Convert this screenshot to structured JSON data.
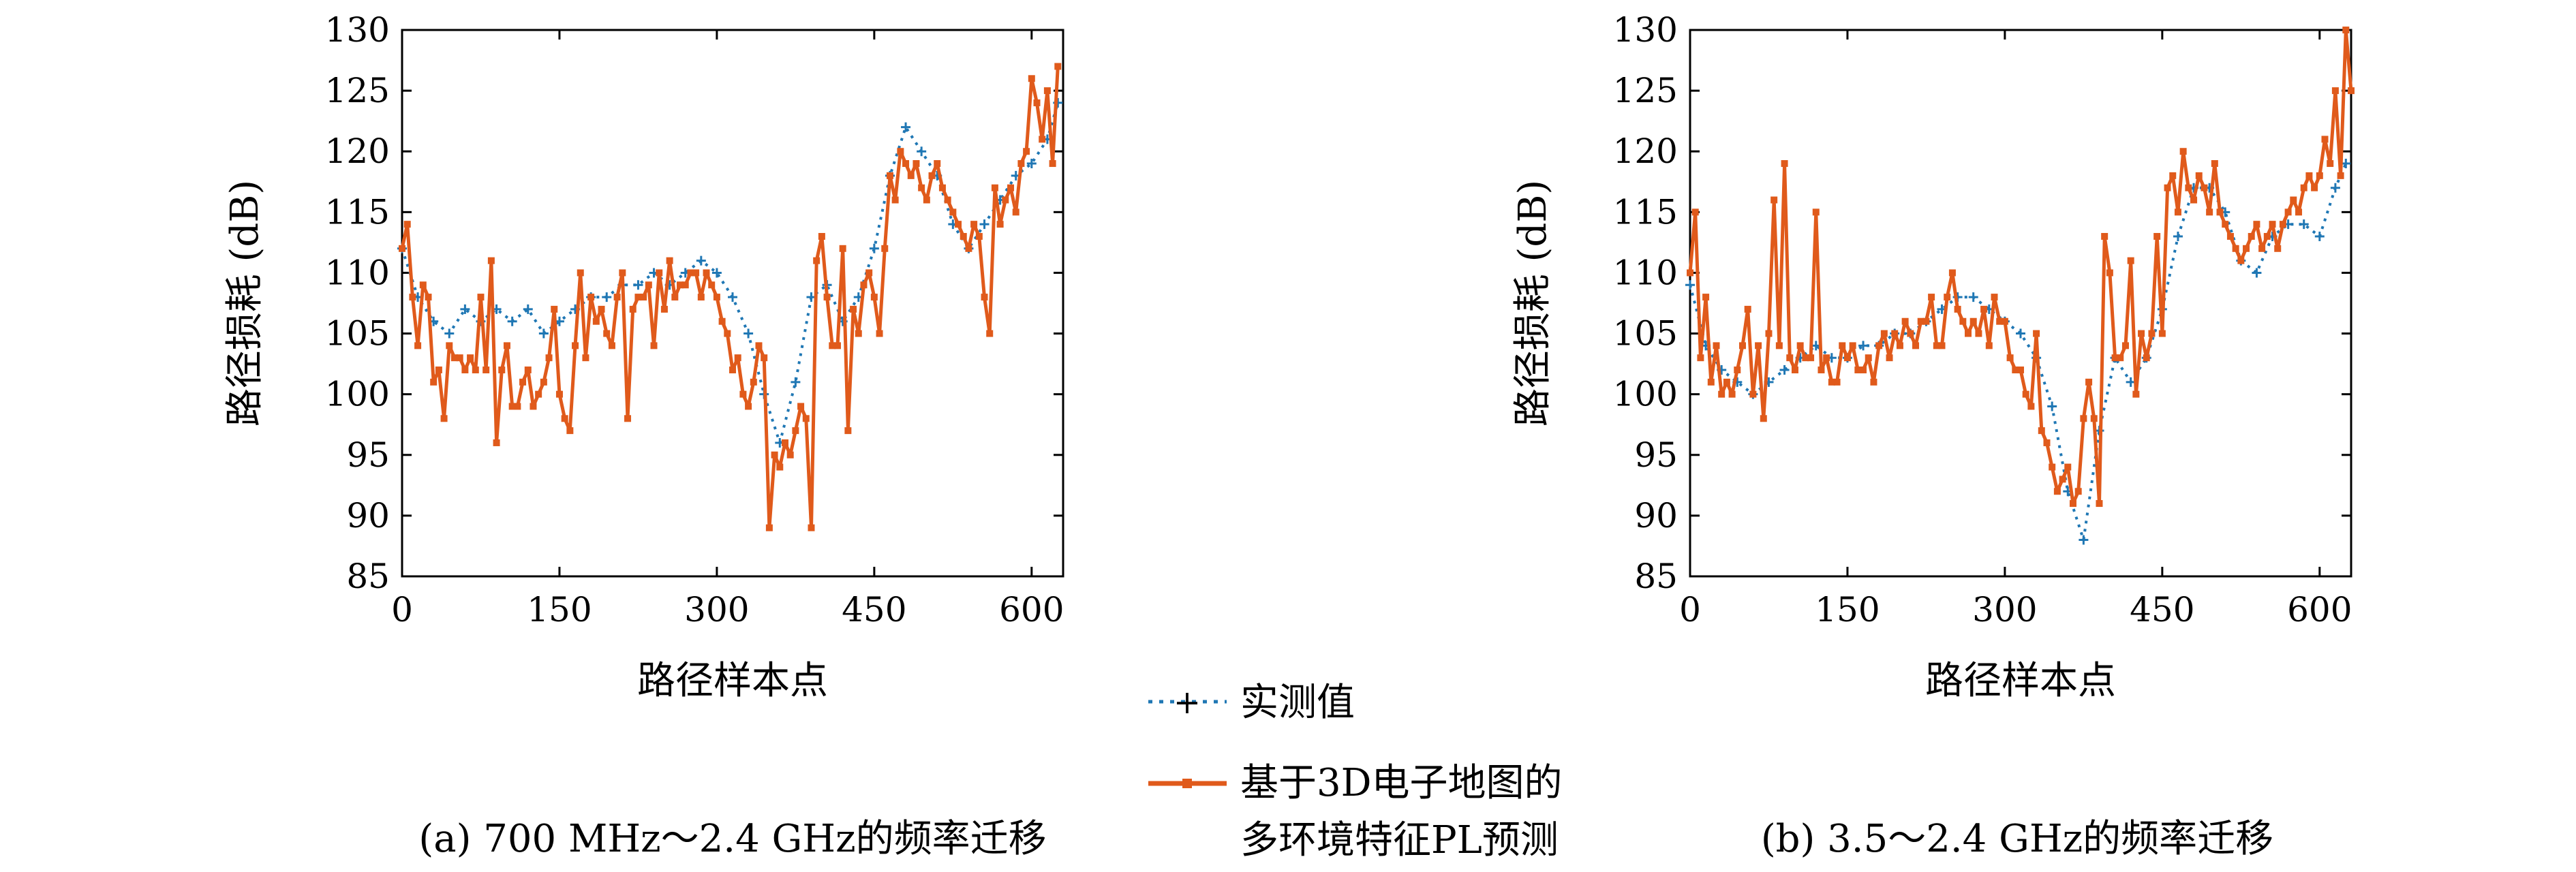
{
  "legend": {
    "measured": "实测值",
    "model_line1": "基于3D电子地图的",
    "model_line2": "多环境特征PL预测"
  },
  "colors": {
    "measured": "#1f77b4",
    "model": "#e05a1b"
  },
  "chart_data": [
    {
      "type": "line",
      "caption": "(a) 700 MHz～2.4 GHz的频率迁移",
      "xlabel": "路径样本点",
      "ylabel": "路径损耗 (dB)",
      "xlim": [
        0,
        630
      ],
      "ylim": [
        85,
        130
      ],
      "xticks": [
        0,
        150,
        300,
        450,
        600
      ],
      "yticks": [
        85,
        90,
        95,
        100,
        105,
        110,
        115,
        120,
        125,
        130
      ],
      "grid": false,
      "series": [
        {
          "name": "实测值",
          "style": "dotted-plus",
          "x": [
            0,
            15,
            30,
            45,
            60,
            75,
            90,
            105,
            120,
            135,
            150,
            165,
            180,
            195,
            210,
            225,
            240,
            255,
            270,
            285,
            300,
            315,
            330,
            345,
            360,
            375,
            390,
            405,
            420,
            435,
            450,
            465,
            480,
            495,
            510,
            525,
            540,
            555,
            570,
            585,
            600,
            615,
            625
          ],
          "y": [
            112,
            108,
            106,
            105,
            107,
            106,
            107,
            106,
            107,
            105,
            106,
            107,
            108,
            108,
            109,
            109,
            110,
            109,
            110,
            111,
            110,
            108,
            105,
            100,
            96,
            101,
            108,
            109,
            106,
            108,
            112,
            118,
            122,
            120,
            118,
            114,
            112,
            114,
            116,
            118,
            119,
            121,
            124
          ]
        },
        {
          "name": "基于3D电子地图的多环境特征PL预测",
          "style": "solid-square",
          "x": [
            0,
            5,
            10,
            15,
            20,
            25,
            30,
            35,
            40,
            45,
            50,
            55,
            60,
            65,
            70,
            75,
            80,
            85,
            90,
            95,
            100,
            105,
            110,
            115,
            120,
            125,
            130,
            135,
            140,
            145,
            150,
            155,
            160,
            165,
            170,
            175,
            180,
            185,
            190,
            195,
            200,
            205,
            210,
            215,
            220,
            225,
            230,
            235,
            240,
            245,
            250,
            255,
            260,
            265,
            270,
            275,
            280,
            285,
            290,
            295,
            300,
            305,
            310,
            315,
            320,
            325,
            330,
            335,
            340,
            345,
            350,
            355,
            360,
            365,
            370,
            375,
            380,
            385,
            390,
            395,
            400,
            405,
            410,
            415,
            420,
            425,
            430,
            435,
            440,
            445,
            450,
            455,
            460,
            465,
            470,
            475,
            480,
            485,
            490,
            495,
            500,
            505,
            510,
            515,
            520,
            525,
            530,
            535,
            540,
            545,
            550,
            555,
            560,
            565,
            570,
            575,
            580,
            585,
            590,
            595,
            600,
            605,
            610,
            615,
            620,
            625
          ],
          "y": [
            112,
            114,
            108,
            104,
            109,
            108,
            101,
            102,
            98,
            104,
            103,
            103,
            102,
            103,
            102,
            108,
            102,
            111,
            96,
            102,
            104,
            99,
            99,
            101,
            102,
            99,
            100,
            101,
            103,
            107,
            100,
            98,
            97,
            104,
            110,
            103,
            108,
            106,
            107,
            105,
            104,
            108,
            110,
            98,
            107,
            108,
            108,
            109,
            104,
            110,
            107,
            111,
            108,
            109,
            109,
            110,
            110,
            108,
            110,
            109,
            108,
            106,
            105,
            102,
            103,
            100,
            99,
            101,
            104,
            103,
            89,
            95,
            94,
            96,
            95,
            97,
            99,
            98,
            89,
            111,
            113,
            108,
            104,
            104,
            112,
            97,
            107,
            105,
            109,
            110,
            108,
            105,
            112,
            118,
            116,
            120,
            119,
            118,
            119,
            117,
            116,
            118,
            119,
            117,
            116,
            115,
            114,
            113,
            112,
            114,
            113,
            108,
            105,
            117,
            114,
            116,
            117,
            115,
            119,
            120,
            126,
            124,
            121,
            125,
            119,
            127
          ]
        }
      ]
    },
    {
      "type": "line",
      "caption": "(b) 3.5～2.4 GHz的频率迁移",
      "xlabel": "路径样本点",
      "ylabel": "路径损耗 (dB)",
      "xlim": [
        0,
        630
      ],
      "ylim": [
        85,
        130
      ],
      "xticks": [
        0,
        150,
        300,
        450,
        600
      ],
      "yticks": [
        85,
        90,
        95,
        100,
        105,
        110,
        115,
        120,
        125,
        130
      ],
      "grid": false,
      "series": [
        {
          "name": "实测值",
          "style": "dotted-plus",
          "x": [
            0,
            15,
            30,
            45,
            60,
            75,
            90,
            105,
            120,
            135,
            150,
            165,
            180,
            195,
            210,
            225,
            240,
            255,
            270,
            285,
            300,
            315,
            330,
            345,
            360,
            375,
            390,
            405,
            420,
            435,
            450,
            465,
            480,
            495,
            510,
            525,
            540,
            555,
            570,
            585,
            600,
            615,
            625
          ],
          "y": [
            109,
            104,
            102,
            101,
            100,
            101,
            102,
            103,
            104,
            103,
            103,
            104,
            104,
            105,
            105,
            106,
            107,
            108,
            108,
            107,
            106,
            105,
            103,
            99,
            92,
            88,
            97,
            103,
            101,
            103,
            107,
            113,
            117,
            117,
            115,
            111,
            110,
            113,
            114,
            114,
            113,
            117,
            119
          ]
        },
        {
          "name": "基于3D电子地图的多环境特征PL预测",
          "style": "solid-square",
          "x": [
            0,
            5,
            10,
            15,
            20,
            25,
            30,
            35,
            40,
            45,
            50,
            55,
            60,
            65,
            70,
            75,
            80,
            85,
            90,
            95,
            100,
            105,
            110,
            115,
            120,
            125,
            130,
            135,
            140,
            145,
            150,
            155,
            160,
            165,
            170,
            175,
            180,
            185,
            190,
            195,
            200,
            205,
            210,
            215,
            220,
            225,
            230,
            235,
            240,
            245,
            250,
            255,
            260,
            265,
            270,
            275,
            280,
            285,
            290,
            295,
            300,
            305,
            310,
            315,
            320,
            325,
            330,
            335,
            340,
            345,
            350,
            355,
            360,
            365,
            370,
            375,
            380,
            385,
            390,
            395,
            400,
            405,
            410,
            415,
            420,
            425,
            430,
            435,
            440,
            445,
            450,
            455,
            460,
            465,
            470,
            475,
            480,
            485,
            490,
            495,
            500,
            505,
            510,
            515,
            520,
            525,
            530,
            535,
            540,
            545,
            550,
            555,
            560,
            565,
            570,
            575,
            580,
            585,
            590,
            595,
            600,
            605,
            610,
            615,
            620,
            625,
            630
          ],
          "y": [
            110,
            115,
            103,
            108,
            101,
            104,
            100,
            101,
            100,
            102,
            104,
            107,
            100,
            104,
            98,
            105,
            116,
            104,
            119,
            103,
            102,
            104,
            103,
            103,
            115,
            102,
            103,
            101,
            101,
            104,
            103,
            104,
            102,
            102,
            103,
            101,
            104,
            105,
            103,
            105,
            104,
            106,
            105,
            104,
            106,
            106,
            108,
            104,
            104,
            108,
            110,
            107,
            106,
            105,
            106,
            105,
            107,
            104,
            108,
            106,
            106,
            103,
            102,
            102,
            100,
            99,
            105,
            97,
            96,
            94,
            92,
            93,
            94,
            91,
            92,
            98,
            101,
            98,
            91,
            113,
            110,
            103,
            103,
            104,
            111,
            100,
            105,
            103,
            105,
            113,
            105,
            117,
            118,
            115,
            120,
            117,
            116,
            118,
            117,
            115,
            119,
            115,
            114,
            113,
            112,
            111,
            112,
            113,
            114,
            112,
            113,
            114,
            112,
            114,
            115,
            116,
            115,
            117,
            118,
            117,
            118,
            121,
            119,
            125,
            118,
            130,
            125
          ]
        }
      ]
    }
  ]
}
